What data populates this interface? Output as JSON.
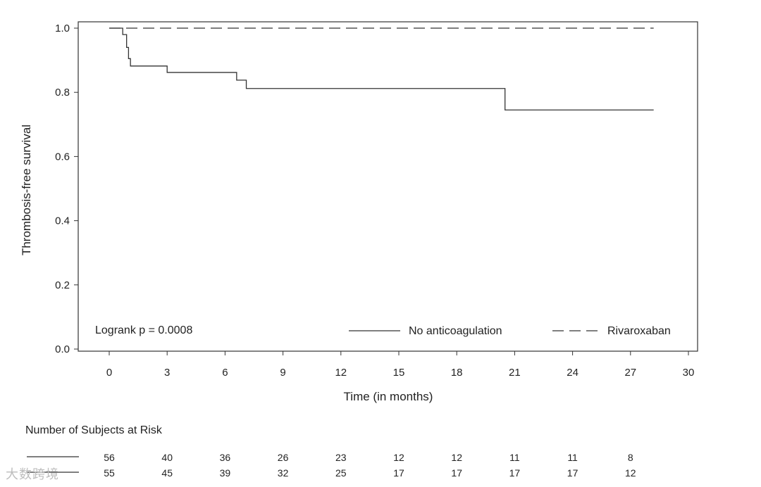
{
  "chart_data": {
    "type": "line",
    "step": true,
    "title": "",
    "xlabel": "Time (in months)",
    "ylabel": "Thrombosis-free survival",
    "xlim": [
      -1,
      30
    ],
    "ylim": [
      0,
      1.02
    ],
    "xticks": [
      0,
      3,
      6,
      9,
      12,
      15,
      18,
      21,
      24,
      27,
      30
    ],
    "yticks": [
      0.0,
      0.2,
      0.4,
      0.6,
      0.8,
      1.0
    ],
    "ytick_labels": [
      "0.0",
      "0.2",
      "0.4",
      "0.6",
      "0.8",
      "1.0"
    ],
    "grid": false,
    "legend_placement": "bottom-right",
    "annotation": "Logrank p = 0.0008",
    "series": [
      {
        "name": "No anticoagulation",
        "style": "solid",
        "x": [
          0,
          0.7,
          0.9,
          1.0,
          1.1,
          3.0,
          6.6,
          7.1,
          20.5,
          28.2
        ],
        "y": [
          1.0,
          0.98,
          0.94,
          0.905,
          0.882,
          0.862,
          0.838,
          0.812,
          0.745,
          0.745
        ]
      },
      {
        "name": "Rivaroxaban",
        "style": "dashed",
        "x": [
          0,
          28.2
        ],
        "y": [
          1.0,
          1.0
        ]
      }
    ],
    "risk_table": {
      "title": "Number of Subjects at Risk",
      "times": [
        0,
        3,
        6,
        9,
        12,
        15,
        18,
        21,
        24,
        27
      ],
      "rows": [
        {
          "style": "solid",
          "counts": [
            "56",
            "40",
            "36",
            "26",
            "23",
            "12",
            "12",
            "11",
            "11",
            "8"
          ]
        },
        {
          "style": "solid",
          "counts": [
            "55",
            "45",
            "39",
            "32",
            "25",
            "17",
            "17",
            "17",
            "17",
            "12"
          ]
        }
      ]
    }
  },
  "watermark": "大数跨境"
}
